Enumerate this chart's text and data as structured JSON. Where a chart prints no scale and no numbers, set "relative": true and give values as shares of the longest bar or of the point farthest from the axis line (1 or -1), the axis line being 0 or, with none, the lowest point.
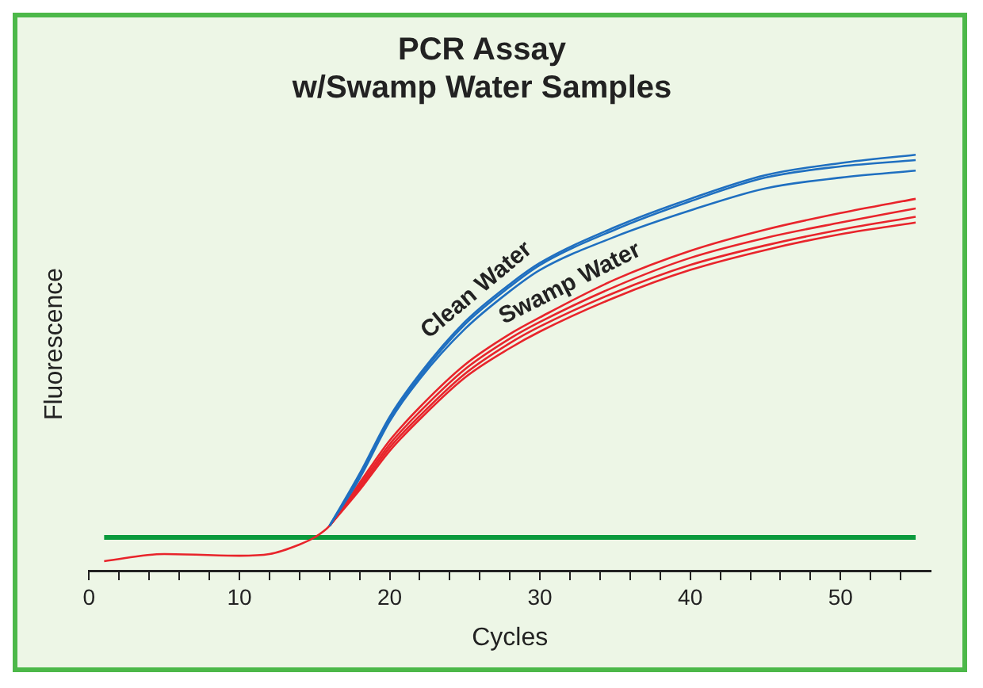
{
  "chart_data": {
    "type": "line",
    "title": "PCR Assay\nw/Swamp Water Samples",
    "xlabel": "Cycles",
    "ylabel": "Fluorescence",
    "relative": true,
    "x": [
      1,
      5,
      10,
      12,
      14,
      15,
      16,
      18,
      20,
      22,
      25,
      28,
      30,
      35,
      40,
      45,
      50,
      55
    ],
    "xlim": [
      0,
      56
    ],
    "xticks": [
      0,
      {
        "value": 2,
        "label": null
      },
      {
        "value": 4,
        "label": null
      },
      {
        "value": 6,
        "label": null
      },
      {
        "value": 8,
        "label": null
      },
      10,
      {
        "value": 12,
        "label": null
      },
      {
        "value": 14,
        "label": null
      },
      {
        "value": 16,
        "label": null
      },
      {
        "value": 18,
        "label": null
      },
      20,
      {
        "value": 22,
        "label": null
      },
      {
        "value": 24,
        "label": null
      },
      {
        "value": 26,
        "label": null
      },
      {
        "value": 28,
        "label": null
      },
      30,
      {
        "value": 32,
        "label": null
      },
      {
        "value": 34,
        "label": null
      },
      {
        "value": 36,
        "label": null
      },
      {
        "value": 38,
        "label": null
      },
      40,
      {
        "value": 42,
        "label": null
      },
      {
        "value": 44,
        "label": null
      },
      {
        "value": 46,
        "label": null
      },
      {
        "value": 48,
        "label": null
      },
      50,
      {
        "value": 52,
        "label": null
      },
      {
        "value": 54,
        "label": null
      }
    ],
    "series": [
      {
        "color": "#1f6fc0",
        "values": [
          null,
          null,
          null,
          null,
          null,
          null,
          0.108,
          0.222,
          0.359,
          0.461,
          0.581,
          0.672,
          0.723,
          0.803,
          0.866,
          0.919,
          0.945,
          0.962
        ]
      },
      {
        "color": "#1f6fc0",
        "values": [
          null,
          null,
          null,
          null,
          null,
          null,
          0.108,
          0.228,
          0.364,
          0.467,
          0.592,
          0.683,
          0.735,
          0.82,
          0.888,
          0.945,
          0.972,
          0.987
        ]
      },
      {
        "name": "Clean Water",
        "color": "#1f6fc0",
        "values": [
          null,
          null,
          null,
          null,
          null,
          null,
          0.108,
          0.233,
          0.37,
          0.473,
          0.598,
          0.689,
          0.74,
          0.826,
          0.894,
          0.951,
          0.98,
          1.0
        ]
      },
      {
        "color": "#e8242b",
        "values": [
          null,
          null,
          null,
          null,
          null,
          null,
          0.108,
          0.194,
          0.288,
          0.364,
          0.464,
          0.535,
          0.575,
          0.657,
          0.723,
          0.771,
          0.809,
          0.837
        ]
      },
      {
        "color": "#e8242b",
        "values": [
          null,
          null,
          null,
          null,
          null,
          null,
          0.108,
          0.199,
          0.296,
          0.372,
          0.473,
          0.547,
          0.587,
          0.669,
          0.735,
          0.782,
          0.82,
          0.851
        ]
      },
      {
        "color": "#e8242b",
        "values": [
          null,
          null,
          null,
          null,
          null,
          null,
          0.108,
          0.205,
          0.304,
          0.382,
          0.484,
          0.558,
          0.598,
          0.683,
          0.752,
          0.8,
          0.837,
          0.871
        ]
      },
      {
        "name": "Swamp Water",
        "color": "#e8242b",
        "values": [
          0.023,
          0.04,
          0.036,
          0.04,
          0.063,
          0.08,
          0.108,
          0.211,
          0.313,
          0.393,
          0.495,
          0.569,
          0.609,
          0.7,
          0.769,
          0.82,
          0.86,
          0.894
        ]
      }
    ],
    "ref_lines": [
      {
        "axis": "y",
        "value": 0.08,
        "color": "#0a9a3c"
      }
    ],
    "grid": false,
    "legend": false,
    "marker": "none",
    "line_style": "solid"
  }
}
